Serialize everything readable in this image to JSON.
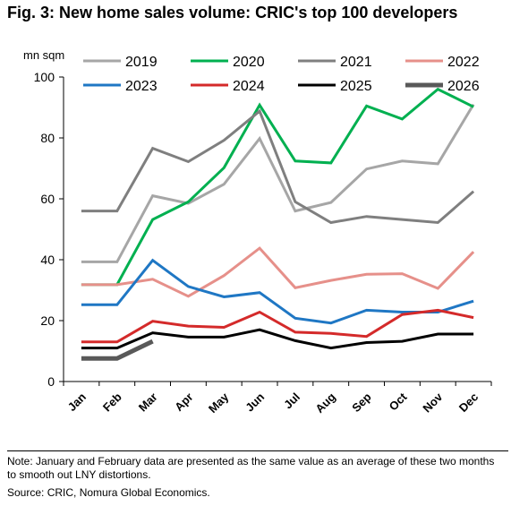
{
  "title": "Fig. 3: New home sales volume: CRIC's top 100 developers",
  "note": "Note: January and February data are presented as the same value as an average of these two months to smooth out LNY distortions.",
  "source": "Source: CRIC, Nomura Global Economics.",
  "chart_data": {
    "type": "line",
    "ylabel": "mn sqm",
    "ylim": [
      0,
      100
    ],
    "yticks": [
      0,
      20,
      40,
      60,
      80,
      100
    ],
    "categories": [
      "Jan",
      "Feb",
      "Mar",
      "Apr",
      "May",
      "Jun",
      "Jul",
      "Aug",
      "Sep",
      "Oct",
      "Nov",
      "Dec"
    ],
    "legend_position": "top",
    "grid": false,
    "series": [
      {
        "name": "2019",
        "color": "#a6a6a6",
        "values": [
          39.3,
          39.3,
          61,
          58.5,
          64.8,
          79.8,
          56,
          58.8,
          69.8,
          72.4,
          71.5,
          91
        ]
      },
      {
        "name": "2020",
        "color": "#00b050",
        "values": [
          31.8,
          31.8,
          53.2,
          59,
          70.2,
          90.8,
          72.4,
          71.8,
          90.5,
          86.2,
          96,
          90.2
        ]
      },
      {
        "name": "2021",
        "color": "#7f7f7f",
        "values": [
          56,
          56,
          76.6,
          72.2,
          79.2,
          88.8,
          59,
          52.2,
          54.2,
          53.2,
          52.2,
          62.4
        ]
      },
      {
        "name": "2022",
        "color": "#e6908a",
        "values": [
          31.8,
          31.8,
          33.6,
          28,
          34.8,
          43.8,
          30.8,
          33.2,
          35.2,
          35.4,
          30.6,
          42.6
        ]
      },
      {
        "name": "2023",
        "color": "#1f77c4",
        "values": [
          25.2,
          25.2,
          39.8,
          31.2,
          27.8,
          29.2,
          20.8,
          19.2,
          23.4,
          22.8,
          22.8,
          26.4
        ]
      },
      {
        "name": "2024",
        "color": "#d42a2a",
        "values": [
          13,
          13,
          19.8,
          18.2,
          17.8,
          22.8,
          16.2,
          15.8,
          14.8,
          22,
          23.4,
          21
        ]
      },
      {
        "name": "2025",
        "color": "#000000",
        "values": [
          11,
          11,
          16,
          14.6,
          14.6,
          17,
          13.4,
          11,
          12.8,
          13.2,
          15.6,
          15.6
        ]
      },
      {
        "name": "2026",
        "color": "#595959",
        "values": [
          7.6,
          7.6,
          13.2,
          null,
          null,
          null,
          null,
          null,
          null,
          null,
          null,
          null
        ]
      }
    ]
  }
}
